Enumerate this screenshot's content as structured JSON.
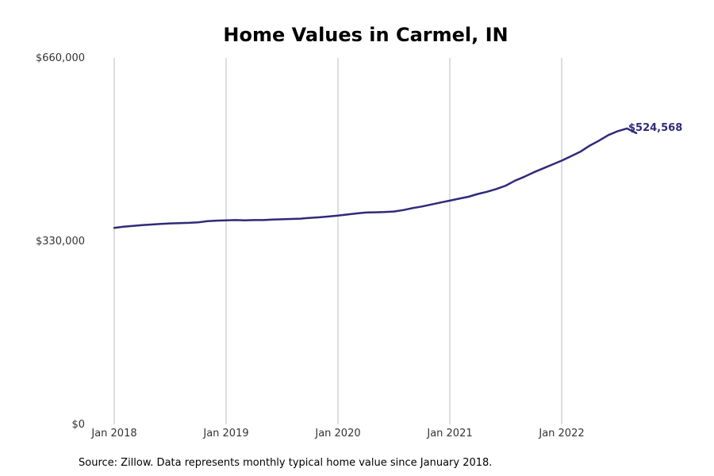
{
  "chart_data": {
    "type": "line",
    "title": "Home Values in Carmel, IN",
    "xlabel": "",
    "ylabel": "",
    "x_tick_labels": [
      "Jan 2018",
      "Jan 2019",
      "Jan 2020",
      "Jan 2021",
      "Jan 2022"
    ],
    "y_tick_labels": [
      "$0",
      "$330,000",
      "$660,000"
    ],
    "y_ticks": [
      0,
      330000,
      660000
    ],
    "ylim": [
      0,
      660000
    ],
    "x_start": "2018-01",
    "x_end": "2022-07",
    "grid": "vertical",
    "series": [
      {
        "values": [
          354000,
          356000,
          357500,
          359000,
          360000,
          361000,
          362000,
          362500,
          363000,
          364000,
          366000,
          367000,
          367500,
          368000,
          367500,
          368000,
          368000,
          369000,
          369500,
          370000,
          370500,
          372000,
          373000,
          374500,
          376000,
          378000,
          380000,
          381500,
          382000,
          382500,
          383500,
          386000,
          389500,
          392500,
          396000,
          399500,
          403000,
          406500,
          410000,
          415000,
          419000,
          424000,
          430000,
          439000,
          446000,
          454000,
          461000,
          468000,
          475000,
          483000,
          491000,
          502000,
          511000,
          521000,
          528000,
          533000,
          524568
        ],
        "color": "#2e2a7a"
      }
    ],
    "end_label": "$524,568",
    "source_note": "Source: Zillow. Data represents monthly typical home value since January 2018."
  }
}
